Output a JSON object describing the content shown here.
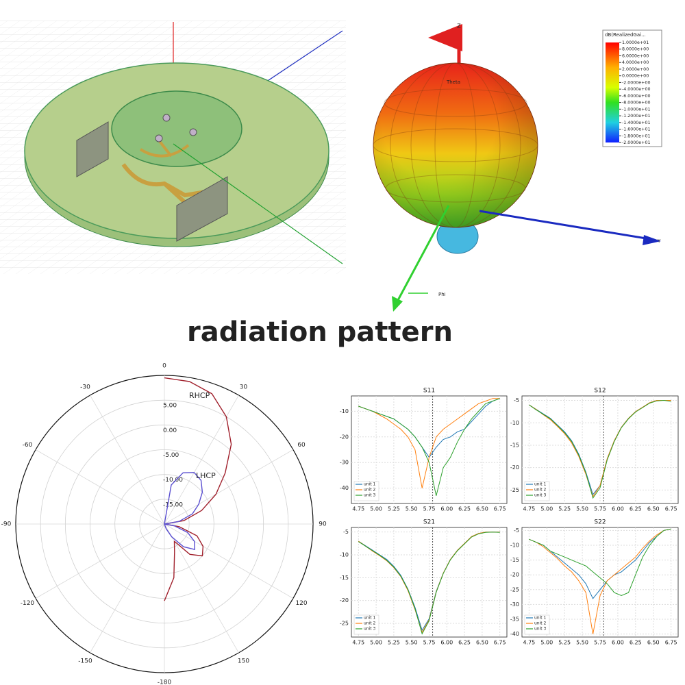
{
  "caption": "radiation pattern",
  "pattern_3d": {
    "axis_labels": [
      "Z",
      "Y",
      "Phi",
      "Theta"
    ],
    "colorbar": {
      "title": "dB(RealizedGai...",
      "lim": [
        -20,
        10
      ],
      "ticks": [
        {
          "value": 10,
          "label": "1.0000e+01"
        },
        {
          "value": 8,
          "label": "8.0000e+00"
        },
        {
          "value": 6,
          "label": "6.0000e+00"
        },
        {
          "value": 4,
          "label": "4.0000e+00"
        },
        {
          "value": 2,
          "label": "2.0000e+00"
        },
        {
          "value": 0,
          "label": "0.0000e+00"
        },
        {
          "value": -2,
          "label": "-2.0000e+00"
        },
        {
          "value": -4,
          "label": "-4.0000e+00"
        },
        {
          "value": -6,
          "label": "-6.0000e+00"
        },
        {
          "value": -8,
          "label": "-8.0000e+00"
        },
        {
          "value": -10,
          "label": "-1.0000e+01"
        },
        {
          "value": -12,
          "label": "-1.2000e+01"
        },
        {
          "value": -14,
          "label": "-1.4000e+01"
        },
        {
          "value": -16,
          "label": "-1.6000e+01"
        },
        {
          "value": -18,
          "label": "-1.8000e+01"
        },
        {
          "value": -20,
          "label": "-2.0000e+01"
        }
      ]
    }
  },
  "chart_data": [
    {
      "type": "polar",
      "rlim": [
        -20,
        10
      ],
      "rticks": [
        {
          "value": 5,
          "label": "5.00"
        },
        {
          "value": 0,
          "label": "0.00"
        },
        {
          "value": -5,
          "label": "-5.00"
        },
        {
          "value": -10,
          "label": "-10.00"
        },
        {
          "value": -15,
          "label": "-15.00"
        }
      ],
      "thetaticks": [
        0,
        30,
        60,
        90,
        120,
        150,
        -180,
        -150,
        -120,
        -90,
        -60,
        -30
      ],
      "x": [
        0,
        10,
        20,
        30,
        40,
        50,
        60,
        70,
        80,
        90,
        100,
        110,
        120,
        130,
        140,
        150,
        160,
        170,
        180
      ],
      "series": [
        {
          "name": "RHCP",
          "color": "#a0202c",
          "values": [
            9.5,
            9.2,
            8,
            5,
            1,
            -4,
            -8,
            -12,
            -16,
            -20,
            -17,
            -13,
            -11,
            -10,
            -12,
            -16,
            -14,
            -9,
            -4.5
          ]
        },
        {
          "name": "LHCP",
          "color": "#5a4fd0",
          "values": [
            -20,
            -12,
            -9,
            -8,
            -8.5,
            -10,
            -12,
            -14,
            -17,
            -20,
            -18,
            -15,
            -13,
            -12,
            -14,
            -17,
            -19,
            -20,
            -20
          ]
        }
      ]
    },
    {
      "type": "line",
      "title": "S11",
      "grid": true,
      "legend": "lower left",
      "vline": 5.8,
      "x": [
        4.75,
        4.85,
        4.95,
        5.05,
        5.15,
        5.25,
        5.35,
        5.45,
        5.55,
        5.65,
        5.75,
        5.85,
        5.95,
        6.05,
        6.15,
        6.25,
        6.35,
        6.45,
        6.55,
        6.65,
        6.75
      ],
      "xlim": [
        4.65,
        6.85
      ],
      "xticks": [
        4.75,
        {
          "value": 5,
          "label": "5.00"
        },
        5.25,
        {
          "value": 5.5,
          "label": "5.50"
        },
        5.75,
        {
          "value": 6,
          "label": "6.00"
        },
        6.25,
        {
          "value": 6.5,
          "label": "6.50"
        },
        6.75
      ],
      "ylim": [
        -46,
        -4
      ],
      "yticks": [
        -40,
        -30,
        -20,
        -10
      ],
      "series": [
        {
          "name": "unit 1",
          "color": "#1f77b4",
          "values": [
            -8,
            -9,
            -10,
            -11,
            -12,
            -13,
            -15,
            -17,
            -20,
            -24,
            -28,
            -24,
            -21,
            -20,
            -18,
            -17,
            -14,
            -11,
            -8,
            -6,
            -5
          ]
        },
        {
          "name": "unit 2",
          "color": "#ff7f0e",
          "values": [
            -8,
            -9,
            -10,
            -11.5,
            -13,
            -15,
            -17,
            -20,
            -25,
            -40,
            -28,
            -20,
            -17,
            -15,
            -13,
            -11,
            -9,
            -7,
            -6,
            -5,
            -5
          ]
        },
        {
          "name": "unit 3",
          "color": "#2ca02c",
          "values": [
            -8,
            -9,
            -10,
            -11,
            -12,
            -13,
            -15,
            -17,
            -20,
            -24,
            -30,
            -43,
            -32,
            -28,
            -22,
            -17,
            -13,
            -10,
            -7,
            -6,
            -5
          ]
        }
      ]
    },
    {
      "type": "line",
      "title": "S12",
      "grid": true,
      "legend": "lower left",
      "vline": 5.8,
      "x": [
        4.75,
        4.85,
        4.95,
        5.05,
        5.15,
        5.25,
        5.35,
        5.45,
        5.55,
        5.65,
        5.75,
        5.85,
        5.95,
        6.05,
        6.15,
        6.25,
        6.35,
        6.45,
        6.55,
        6.65,
        6.75
      ],
      "xlim": [
        4.65,
        6.85
      ],
      "xticks": [
        4.75,
        {
          "value": 5,
          "label": "5.00"
        },
        5.25,
        {
          "value": 5.5,
          "label": "5.50"
        },
        5.75,
        {
          "value": 6,
          "label": "6.00"
        },
        6.25,
        {
          "value": 6.5,
          "label": "6.50"
        },
        6.75
      ],
      "ylim": [
        -28,
        -4
      ],
      "yticks": [
        -25,
        -20,
        -15,
        -10,
        -5
      ],
      "series": [
        {
          "name": "unit 1",
          "color": "#1f77b4",
          "values": [
            -6,
            -7,
            -8,
            -9,
            -10.5,
            -12,
            -14,
            -17,
            -21,
            -26,
            -24,
            -18,
            -14,
            -11,
            -9,
            -7.5,
            -6.5,
            -5.5,
            -5,
            -5,
            -5
          ]
        },
        {
          "name": "unit 2",
          "color": "#ff7f0e",
          "values": [
            -6,
            -7,
            -8.2,
            -9.3,
            -10.8,
            -12.4,
            -14.5,
            -17.5,
            -21.5,
            -26.5,
            -24,
            -18,
            -14,
            -11,
            -9,
            -7.5,
            -6.5,
            -5.5,
            -5,
            -5,
            -5
          ]
        },
        {
          "name": "unit 3",
          "color": "#2ca02c",
          "values": [
            -6,
            -7.1,
            -8.1,
            -9.1,
            -10.6,
            -12.2,
            -14.2,
            -17.2,
            -21.2,
            -26.8,
            -24.5,
            -18.3,
            -14.2,
            -11.1,
            -9.1,
            -7.6,
            -6.6,
            -5.6,
            -5.1,
            -5,
            -5.2
          ]
        }
      ]
    },
    {
      "type": "line",
      "title": "S21",
      "grid": true,
      "legend": "lower left",
      "vline": 5.8,
      "x": [
        4.75,
        4.85,
        4.95,
        5.05,
        5.15,
        5.25,
        5.35,
        5.45,
        5.55,
        5.65,
        5.75,
        5.85,
        5.95,
        6.05,
        6.15,
        6.25,
        6.35,
        6.45,
        6.55,
        6.65,
        6.75
      ],
      "xlim": [
        4.65,
        6.85
      ],
      "xticks": [
        4.75,
        {
          "value": 5,
          "label": "5.00"
        },
        5.25,
        {
          "value": 5.5,
          "label": "5.50"
        },
        5.75,
        {
          "value": 6,
          "label": "6.00"
        },
        6.25,
        {
          "value": 6.5,
          "label": "6.50"
        },
        6.75
      ],
      "ylim": [
        -28,
        -4
      ],
      "yticks": [
        -25,
        -20,
        -15,
        -10,
        -5
      ],
      "series": [
        {
          "name": "unit 1",
          "color": "#1f77b4",
          "values": [
            -7,
            -8,
            -9,
            -10,
            -11,
            -12.5,
            -14.5,
            -17.5,
            -21.5,
            -26.5,
            -24,
            -18,
            -14,
            -11,
            -9,
            -7.5,
            -6,
            -5.3,
            -5,
            -5,
            -5
          ]
        },
        {
          "name": "unit 2",
          "color": "#ff7f0e",
          "values": [
            -7,
            -8.1,
            -9.2,
            -10.2,
            -11.3,
            -12.8,
            -14.8,
            -17.8,
            -22,
            -27,
            -24.2,
            -18.1,
            -14,
            -11,
            -9,
            -7.5,
            -6,
            -5.3,
            -5,
            -5,
            -5
          ]
        },
        {
          "name": "unit 3",
          "color": "#2ca02c",
          "values": [
            -7.1,
            -8.1,
            -9.1,
            -10.1,
            -11.2,
            -12.7,
            -14.7,
            -17.6,
            -21.8,
            -27.3,
            -24.4,
            -18.2,
            -14.1,
            -11.1,
            -9.1,
            -7.6,
            -6.1,
            -5.4,
            -5.1,
            -5,
            -5.1
          ]
        }
      ]
    },
    {
      "type": "line",
      "title": "S22",
      "grid": true,
      "legend": "lower left",
      "vline": 5.8,
      "x": [
        4.75,
        4.85,
        4.95,
        5.05,
        5.15,
        5.25,
        5.35,
        5.45,
        5.55,
        5.65,
        5.75,
        5.85,
        5.95,
        6.05,
        6.15,
        6.25,
        6.35,
        6.45,
        6.55,
        6.65,
        6.75
      ],
      "xlim": [
        4.65,
        6.85
      ],
      "xticks": [
        4.75,
        {
          "value": 5,
          "label": "5.00"
        },
        5.25,
        {
          "value": 5.5,
          "label": "5.50"
        },
        5.75,
        {
          "value": 6,
          "label": "6.00"
        },
        6.25,
        {
          "value": 6.5,
          "label": "6.50"
        },
        6.75
      ],
      "ylim": [
        -41,
        -4
      ],
      "yticks": [
        -40,
        -35,
        -30,
        -25,
        -20,
        -15,
        -10,
        -5
      ],
      "series": [
        {
          "name": "unit 1",
          "color": "#1f77b4",
          "values": [
            -8,
            -9,
            -10,
            -12,
            -14,
            -16,
            -18,
            -20,
            -23,
            -28,
            -25,
            -22,
            -20,
            -19,
            -17,
            -15,
            -12,
            -9,
            -7,
            -5,
            -4.5
          ]
        },
        {
          "name": "unit 2",
          "color": "#ff7f0e",
          "values": [
            -8,
            -9,
            -10.5,
            -12.5,
            -14.5,
            -17,
            -19,
            -22,
            -26,
            -40,
            -27,
            -22,
            -20,
            -18,
            -16,
            -14,
            -11,
            -8.5,
            -6.5,
            -5,
            -4.5
          ]
        },
        {
          "name": "unit 3",
          "color": "#2ca02c",
          "values": [
            -8,
            -9,
            -10,
            -12,
            -13,
            -14,
            -15,
            -16,
            -17,
            -19,
            -21,
            -23,
            -26,
            -27,
            -26,
            -20,
            -14,
            -10,
            -7,
            -5,
            -4.5
          ]
        }
      ]
    }
  ]
}
